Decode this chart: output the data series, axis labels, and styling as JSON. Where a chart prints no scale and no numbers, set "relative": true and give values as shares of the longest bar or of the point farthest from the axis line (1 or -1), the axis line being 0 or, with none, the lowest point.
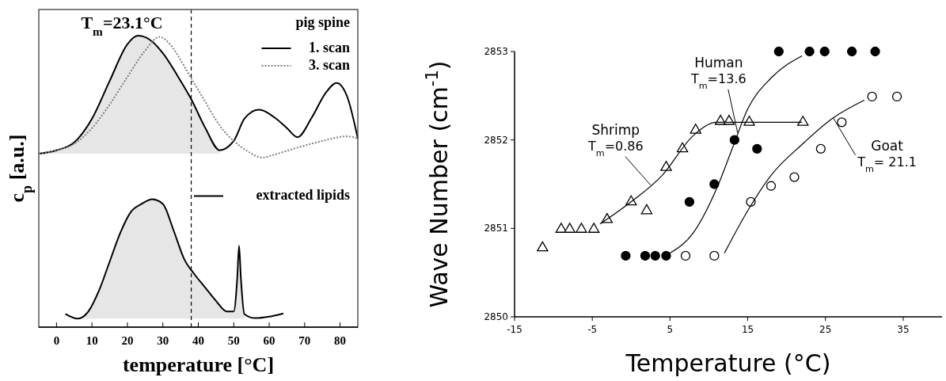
{
  "chart_data": [
    {
      "type": "line",
      "relative": true,
      "xlim": [
        -5,
        85
      ],
      "xticks": [
        0,
        10,
        20,
        30,
        40,
        50,
        60,
        70,
        80
      ],
      "tick_labels": "x",
      "xlabel": "temperature [°C]",
      "ylabel": "c$_{p}$ [a.u.]",
      "legend": "right",
      "legend_title": "pig spine",
      "annotations": [
        "T$_{m}$=23.1°C"
      ],
      "ref_lines": [
        {
          "axis": "x",
          "value": 38,
          "color": "#000000",
          "line_style": "dashed"
        }
      ],
      "series": [
        {
          "name": "1. scan",
          "color": "#000000",
          "line_style": "solid",
          "x": [
            -5,
            0,
            5,
            10,
            15,
            20,
            23,
            27,
            30,
            35,
            38,
            42,
            46,
            50,
            53,
            57,
            62,
            65,
            68,
            72,
            76,
            79,
            82,
            85
          ],
          "values": [
            0.595,
            0.607,
            0.634,
            0.715,
            0.845,
            0.971,
            1.0,
            0.98,
            0.94,
            0.845,
            0.782,
            0.683,
            0.607,
            0.639,
            0.715,
            0.746,
            0.715,
            0.683,
            0.652,
            0.719,
            0.805,
            0.838,
            0.791,
            0.647
          ],
          "lower": [
            0.595,
            0.595,
            0.595,
            0.595,
            0.595,
            0.595,
            0.595,
            0.595,
            0.595,
            0.595,
            0.595,
            0.595,
            0.595,
            null,
            null,
            null,
            null,
            null,
            null,
            null,
            null,
            null,
            null,
            null
          ],
          "upper": [
            0.595,
            0.607,
            0.634,
            0.715,
            0.845,
            0.971,
            1.0,
            0.98,
            0.94,
            0.845,
            0.782,
            0.683,
            0.607,
            null,
            null,
            null,
            null,
            null,
            null,
            null,
            null,
            null,
            null,
            null
          ]
        },
        {
          "name": "3. scan",
          "color": "#808080",
          "line_style": "dotted",
          "x": [
            -5,
            0,
            5,
            10,
            15,
            20,
            25,
            29,
            32,
            35,
            38,
            42,
            46,
            50,
            54,
            58,
            62,
            68,
            75,
            82,
            85
          ],
          "values": [
            0.595,
            0.607,
            0.629,
            0.683,
            0.764,
            0.859,
            0.949,
            0.996,
            0.971,
            0.917,
            0.854,
            0.773,
            0.692,
            0.639,
            0.603,
            0.582,
            0.594,
            0.616,
            0.639,
            0.655,
            0.647
          ]
        },
        {
          "name": "extracted lipids",
          "color": "#000000",
          "line_style": "solid",
          "x": [
            2.5,
            6,
            9,
            12,
            15,
            18,
            21,
            24,
            27,
            30,
            33,
            36,
            39,
            42,
            45,
            48,
            50,
            51,
            51.5,
            52,
            53,
            56,
            60,
            64
          ],
          "values": [
            0.045,
            0.029,
            0.054,
            0.126,
            0.225,
            0.324,
            0.396,
            0.423,
            0.439,
            0.423,
            0.333,
            0.234,
            0.18,
            0.135,
            0.09,
            0.054,
            0.054,
            0.171,
            0.279,
            0.171,
            0.045,
            0.031,
            0.036,
            0.047
          ],
          "lower": [
            null,
            0.029,
            0.029,
            0.029,
            0.029,
            0.029,
            0.029,
            0.029,
            0.029,
            0.029,
            0.029,
            0.029,
            0.029,
            0.029,
            0.029,
            0.029,
            0.029,
            0.029,
            0.029,
            0.029,
            0.029,
            null,
            null,
            null
          ],
          "upper": [
            null,
            0.029,
            0.054,
            0.126,
            0.225,
            0.324,
            0.396,
            0.423,
            0.439,
            0.423,
            0.333,
            0.234,
            0.18,
            0.135,
            0.09,
            0.054,
            0.054,
            0.171,
            0.279,
            0.171,
            0.045,
            null,
            null,
            null
          ]
        }
      ]
    },
    {
      "type": "scatter",
      "xlim": [
        -15,
        40
      ],
      "xticks": [
        -15,
        -5,
        5,
        15,
        25,
        35
      ],
      "ylim": [
        2850,
        2853
      ],
      "yticks": [
        2850,
        2851,
        2852,
        2853
      ],
      "xlabel": "Temperature (°C)",
      "ylabel": "Wave Number (cm$^{-1}$)",
      "legend": false,
      "annotations": [
        {
          "text": "T$_{m}$=0.86",
          "x": 2.5,
          "y": 2851.49
        },
        {
          "text": "T$_{m}$=13.6",
          "x": 13.7,
          "y": 2852.08
        },
        {
          "text": "T$_{m}$= 21.1",
          "x": 26,
          "y": 2852.25
        }
      ],
      "series": [
        {
          "name": "Shrimp",
          "color": "#000000",
          "marker": "triangle-open",
          "x": [
            -11.4,
            -9,
            -7.9,
            -6.4,
            -4.8,
            -3.1,
            0,
            2,
            4.5,
            6.6,
            8.3,
            11.5,
            12.6,
            15.2,
            22.1
          ],
          "values": [
            2850.78,
            2850.99,
            2850.99,
            2850.99,
            2850.99,
            2851.1,
            2851.3,
            2851.2,
            2851.69,
            2851.9,
            2852.11,
            2852.21,
            2852.21,
            2852.2,
            2852.2
          ]
        },
        {
          "name": "Human",
          "color": "#000000",
          "marker": "circle",
          "x": [
            -0.7,
            1.8,
            3.1,
            4.5,
            7.5,
            10.7,
            13.3,
            16.2,
            19,
            22.95,
            24.9,
            28.4,
            31.4
          ],
          "values": [
            2850.69,
            2850.69,
            2850.69,
            2850.69,
            2851.3,
            2851.5,
            2852.0,
            2851.9,
            2853.0,
            2853.0,
            2853.0,
            2853.0,
            2853.0
          ]
        },
        {
          "name": "Goat",
          "color": "#000000",
          "marker": "circle-open",
          "x": [
            7,
            10.7,
            15.4,
            18,
            21,
            24.4,
            27.1,
            31,
            34.2
          ],
          "values": [
            2850.69,
            2850.69,
            2851.3,
            2851.48,
            2851.58,
            2851.9,
            2852.2,
            2852.49,
            2852.49
          ]
        },
        {
          "type": "line",
          "color": "#000000",
          "marker": "none",
          "x": [
            -4,
            0,
            4,
            8,
            11,
            22
          ],
          "values": [
            2851.05,
            2851.3,
            2851.6,
            2852.05,
            2852.2,
            2852.2
          ]
        },
        {
          "type": "line",
          "color": "#000000",
          "marker": "none",
          "x": [
            5,
            8,
            11,
            13,
            15,
            18,
            22
          ],
          "values": [
            2850.72,
            2850.95,
            2851.45,
            2851.9,
            2852.35,
            2852.7,
            2852.95
          ]
        },
        {
          "type": "line",
          "color": "#000000",
          "marker": "none",
          "x": [
            12,
            15,
            18,
            22,
            26,
            30
          ],
          "values": [
            2850.72,
            2851.2,
            2851.6,
            2851.95,
            2852.25,
            2852.45
          ]
        }
      ]
    }
  ]
}
